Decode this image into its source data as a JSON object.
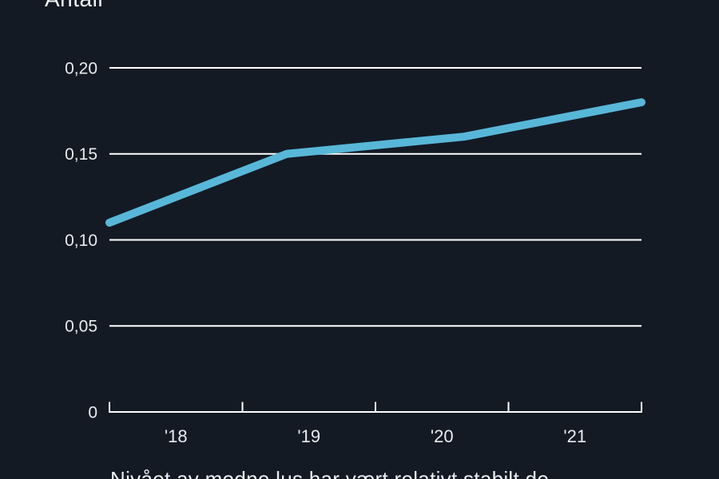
{
  "page": {
    "background": "#131a24"
  },
  "chart_data": {
    "type": "line",
    "title": "Antall",
    "caption": "Nivået av modne lus har vært relativt stabilt de",
    "categories": [
      "'18",
      "'19",
      "'20",
      "'21"
    ],
    "values": [
      0.11,
      0.15,
      0.16,
      0.18
    ],
    "ylim": [
      0,
      0.2
    ],
    "yticks": [
      {
        "value": 0.2,
        "label": "0,20"
      },
      {
        "value": 0.15,
        "label": "0,15"
      },
      {
        "value": 0.1,
        "label": "0,10"
      },
      {
        "value": 0.05,
        "label": "0,05"
      },
      {
        "value": 0,
        "label": "0"
      }
    ],
    "grid": true,
    "legend_position": "none",
    "line_color": "#58b7d8",
    "grid_color": "#ffffff",
    "axis_color": "#ffffff",
    "tick_label_color": "#e9ecef"
  }
}
